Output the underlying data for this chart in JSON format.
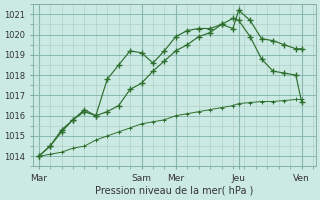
{
  "xlabel": "Pression niveau de la mer( hPa )",
  "bg_color": "#cceae4",
  "grid_color": "#adc8c0",
  "line_color": "#2d6e2d",
  "ylim": [
    1013.5,
    1021.5
  ],
  "yticks": [
    1014,
    1015,
    1016,
    1017,
    1018,
    1019,
    1020,
    1021
  ],
  "xtick_labels": [
    "Mar",
    "Sam",
    "Mer",
    "Jeu",
    "Ven"
  ],
  "xtick_positions": [
    0,
    3.6,
    4.8,
    7.0,
    9.2
  ],
  "xlim": [
    -0.2,
    9.7
  ],
  "line1_x": [
    0,
    0.4,
    0.8,
    1.2,
    1.6,
    2.0,
    2.4,
    2.8,
    3.2,
    3.6,
    4.0,
    4.4,
    4.8,
    5.2,
    5.6,
    6.0,
    6.4,
    6.8,
    7.0,
    7.4,
    7.8,
    8.2,
    8.6,
    9.0,
    9.2
  ],
  "line1_y": [
    1014.0,
    1014.5,
    1015.2,
    1015.8,
    1016.2,
    1016.0,
    1017.8,
    1018.5,
    1019.2,
    1019.1,
    1018.6,
    1019.2,
    1019.9,
    1020.2,
    1020.3,
    1020.3,
    1020.5,
    1020.3,
    1021.2,
    1020.7,
    1019.8,
    1019.7,
    1019.5,
    1019.3,
    1019.3
  ],
  "line2_x": [
    0,
    0.4,
    0.8,
    1.2,
    1.6,
    2.0,
    2.4,
    2.8,
    3.2,
    3.6,
    4.0,
    4.4,
    4.8,
    5.2,
    5.6,
    6.0,
    6.4,
    6.8,
    7.0,
    7.4,
    7.8,
    8.2,
    8.6,
    9.0,
    9.2
  ],
  "line2_y": [
    1014.0,
    1014.5,
    1015.3,
    1015.8,
    1016.3,
    1016.0,
    1016.2,
    1016.5,
    1017.3,
    1017.6,
    1018.2,
    1018.7,
    1019.2,
    1019.5,
    1019.9,
    1020.1,
    1020.5,
    1020.8,
    1020.7,
    1019.9,
    1018.8,
    1018.2,
    1018.1,
    1018.0,
    1016.7
  ],
  "line3_x": [
    0,
    0.4,
    0.8,
    1.2,
    1.6,
    2.0,
    2.4,
    2.8,
    3.2,
    3.6,
    4.0,
    4.4,
    4.8,
    5.2,
    5.6,
    6.0,
    6.4,
    6.8,
    7.0,
    7.4,
    7.8,
    8.2,
    8.6,
    9.0,
    9.2
  ],
  "line3_y": [
    1014.0,
    1014.1,
    1014.2,
    1014.4,
    1014.5,
    1014.8,
    1015.0,
    1015.2,
    1015.4,
    1015.6,
    1015.7,
    1015.8,
    1016.0,
    1016.1,
    1016.2,
    1016.3,
    1016.4,
    1016.5,
    1016.6,
    1016.65,
    1016.7,
    1016.7,
    1016.75,
    1016.8,
    1016.8
  ]
}
